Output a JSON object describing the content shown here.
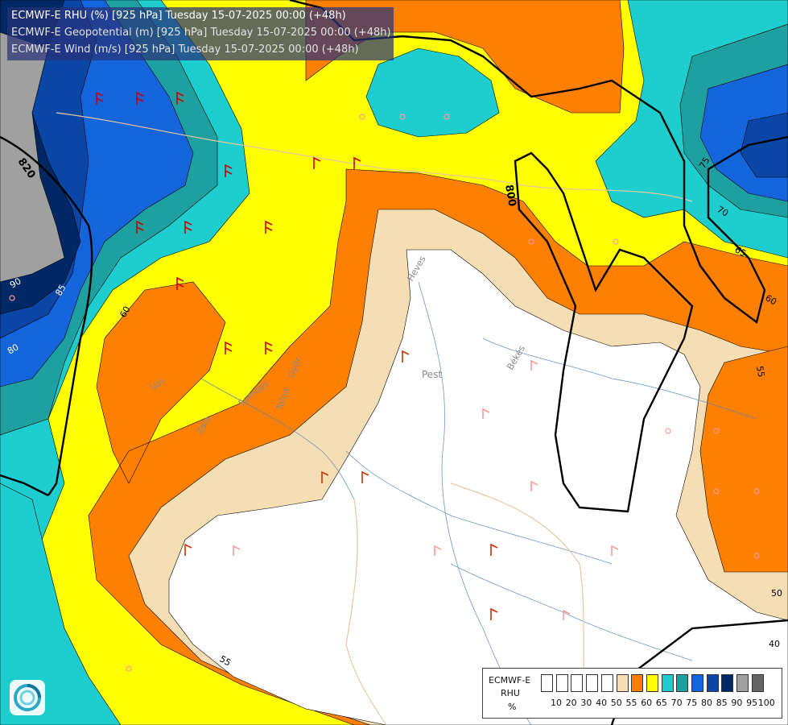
{
  "title": {
    "line1": "ECMWF-E RHU (%) [925 hPa] Tuesday 15-07-2025 00:00 (+48h)",
    "line2": "ECMWF-E Geopotential (m) [925 hPa] Tuesday 15-07-2025 00:00 (+48h)",
    "line3": "ECMWF-E Wind (m/s) [925 hPa] Tuesday 15-07-2025 00:00 (+48h)"
  },
  "legend": {
    "line1": "ECMWF-E",
    "line2": "RHU",
    "line3": "%",
    "swatches": [
      "#ffffff",
      "#ffffff",
      "#ffffff",
      "#ffffff",
      "#ffffff",
      "#f5deb3",
      "#ff8000",
      "#ffff00",
      "#1ecece",
      "#1ea0a0",
      "#1464dc",
      "#0a46a5",
      "#002864",
      "#a0a0a0",
      "#646464"
    ],
    "ticks": [
      "10",
      "20",
      "30",
      "40",
      "50",
      "55",
      "60",
      "65",
      "70",
      "75",
      "80",
      "85",
      "90",
      "95",
      "100"
    ]
  },
  "map": {
    "color_scale": {
      "band_50": "#ffffff",
      "band_55": "#f5deb3",
      "band_60": "#ff8000",
      "band_65": "#ffff00",
      "band_70": "#1ecece",
      "band_75": "#1ea0a0",
      "band_80": "#1464dc",
      "band_85": "#0a46a5",
      "band_90": "#002864",
      "band_95": "#a0a0a0"
    },
    "geopotential_labels": [
      "820",
      "800"
    ],
    "rhu_contour_labels": [
      "90",
      "85",
      "80",
      "60",
      "75",
      "70",
      "65",
      "60",
      "55",
      "55",
      "50",
      "40"
    ],
    "place_labels": [
      "Pest",
      "Heves",
      "Békés",
      "Vas",
      "Zala",
      "Somogy",
      "Tolna",
      "Győr"
    ]
  }
}
